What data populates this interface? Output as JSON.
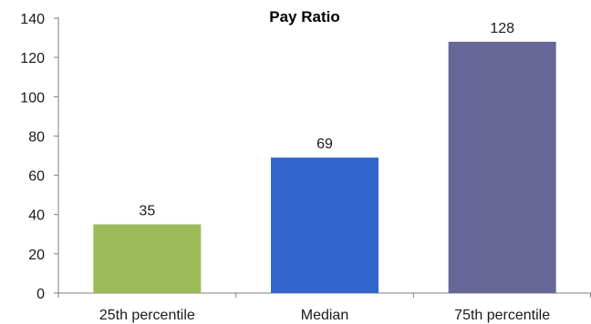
{
  "chart_data": {
    "type": "bar",
    "title": "Pay Ratio",
    "categories": [
      "25th percentile",
      "Median",
      "75th percentile"
    ],
    "values": [
      35,
      69,
      128
    ],
    "colors": [
      "#9bbb59",
      "#3366cc",
      "#666699"
    ],
    "ylim": [
      0,
      140
    ],
    "yticks": [
      "0",
      "20",
      "40",
      "60",
      "80",
      "100",
      "120",
      "140"
    ],
    "data_labels": [
      "35",
      "69",
      "128"
    ],
    "grid": false,
    "legend": "none"
  }
}
